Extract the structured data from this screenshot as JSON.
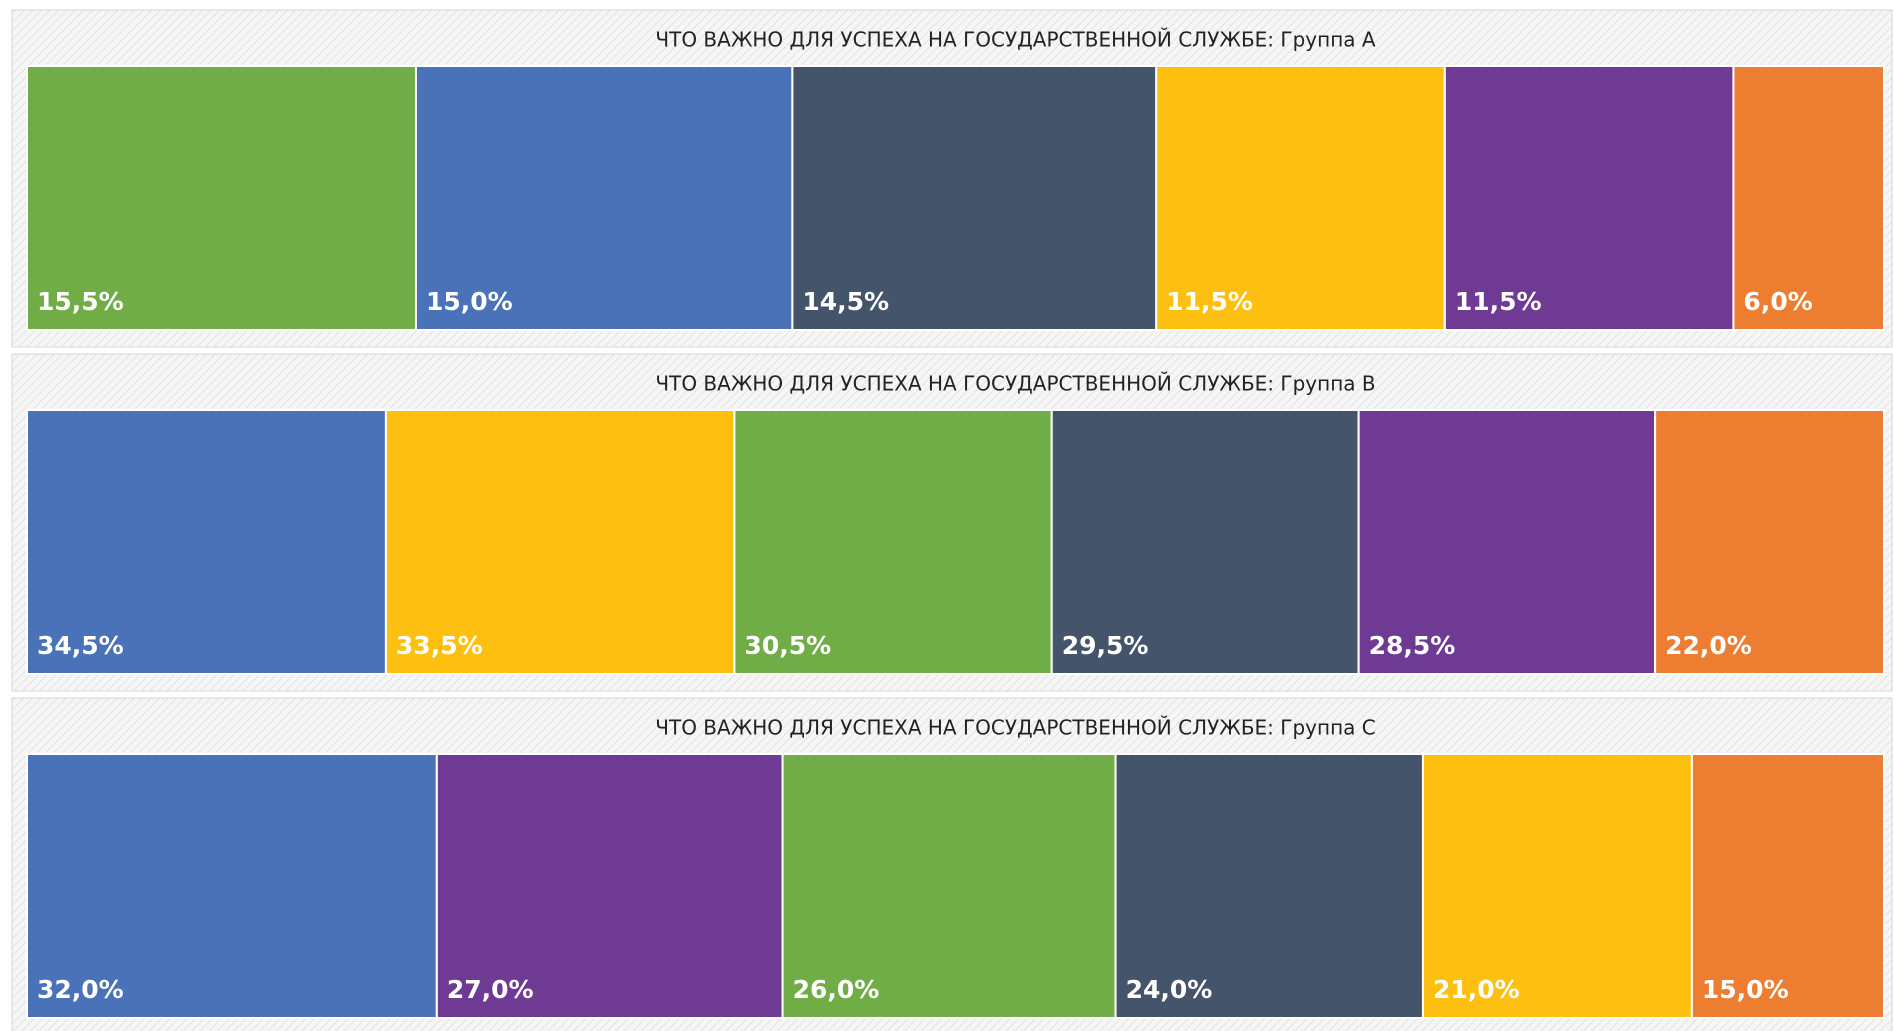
{
  "chart_data": [
    {
      "type": "treemap",
      "title": "ЧТО ВАЖНО ДЛЯ УСПЕХА НА ГОСУДАРСТВЕННОЙ СЛУЖБЕ: Группа А",
      "values": [
        15.5,
        15.0,
        14.5,
        11.5,
        11.5,
        6.0
      ],
      "value_labels": [
        "15,5%",
        "15,0%",
        "14,5%",
        "11,5%",
        "11,5%",
        "6,0%"
      ],
      "colors": [
        "#70ad47",
        "#4a72b8",
        "#44546a",
        "#fdc010",
        "#6e3a93",
        "#ed7d31"
      ]
    },
    {
      "type": "treemap",
      "title": "ЧТО ВАЖНО ДЛЯ УСПЕХА НА ГОСУДАРСТВЕННОЙ СЛУЖБЕ: Группа В",
      "values": [
        34.5,
        33.5,
        30.5,
        29.5,
        28.5,
        22.0
      ],
      "value_labels": [
        "34,5%",
        "33,5%",
        "30,5%",
        "29,5%",
        "28,5%",
        "22,0%"
      ],
      "colors": [
        "#4a72b8",
        "#fdc010",
        "#70ad47",
        "#44546a",
        "#6e3a93",
        "#ed7d31"
      ]
    },
    {
      "type": "treemap",
      "title": "ЧТО ВАЖНО ДЛЯ УСПЕХА НА ГОСУДАРСТВЕННОЙ СЛУЖБЕ: Группа С",
      "values": [
        32.0,
        27.0,
        26.0,
        24.0,
        21.0,
        15.0
      ],
      "value_labels": [
        "32,0%",
        "27,0%",
        "26,0%",
        "24,0%",
        "21,0%",
        "15,0%"
      ],
      "colors": [
        "#4a72b8",
        "#6e3a93",
        "#70ad47",
        "#44546a",
        "#fdc010",
        "#ed7d31"
      ]
    }
  ]
}
